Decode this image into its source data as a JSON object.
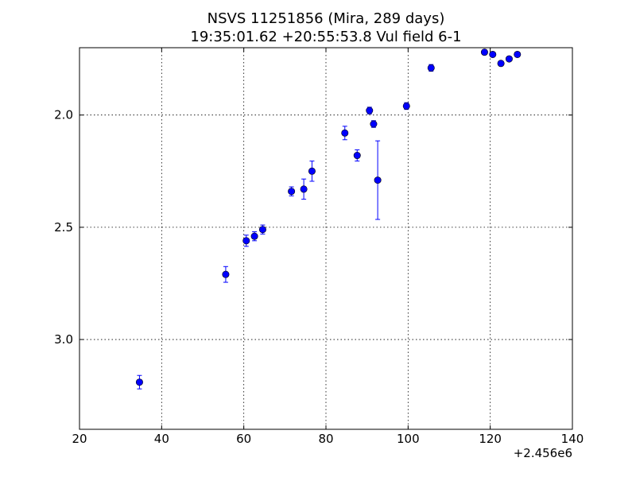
{
  "chart_data": {
    "type": "scatter",
    "title": "NSVS 11251856 (Mira, 289 days)",
    "subtitle": "19:35:01.62 +20:55:53.8 Vul field 6-1",
    "xlabel": "",
    "ylabel": "",
    "x_offset_label": "+2.456e6",
    "xlim": [
      20,
      140
    ],
    "ylim": [
      3.4,
      1.7
    ],
    "y_inverted": true,
    "grid": true,
    "x_ticks": [
      20,
      40,
      60,
      80,
      100,
      120,
      140
    ],
    "x_tick_labels": [
      "20",
      "40",
      "60",
      "80",
      "100",
      "120",
      "140"
    ],
    "y_ticks": [
      2.0,
      2.5,
      3.0
    ],
    "y_tick_labels": [
      "2.0",
      "2.5",
      "3.0"
    ],
    "marker_color": "#0000ff",
    "points": [
      {
        "x": 34.6,
        "y": 3.19,
        "err": 0.03
      },
      {
        "x": 55.6,
        "y": 2.71,
        "err": 0.035
      },
      {
        "x": 60.6,
        "y": 2.56,
        "err": 0.025
      },
      {
        "x": 62.6,
        "y": 2.54,
        "err": 0.02
      },
      {
        "x": 64.6,
        "y": 2.51,
        "err": 0.02
      },
      {
        "x": 71.6,
        "y": 2.34,
        "err": 0.02
      },
      {
        "x": 74.6,
        "y": 2.33,
        "err": 0.045
      },
      {
        "x": 76.6,
        "y": 2.25,
        "err": 0.045
      },
      {
        "x": 84.6,
        "y": 2.08,
        "err": 0.03
      },
      {
        "x": 87.6,
        "y": 2.18,
        "err": 0.025
      },
      {
        "x": 90.6,
        "y": 1.98,
        "err": 0.015
      },
      {
        "x": 91.6,
        "y": 2.04,
        "err": 0.015
      },
      {
        "x": 92.6,
        "y": 2.29,
        "err": 0.175
      },
      {
        "x": 99.6,
        "y": 1.96,
        "err": 0.015
      },
      {
        "x": 105.6,
        "y": 1.79,
        "err": 0.015
      },
      {
        "x": 118.6,
        "y": 1.72,
        "err": 0.01
      },
      {
        "x": 120.6,
        "y": 1.73,
        "err": 0.01
      },
      {
        "x": 122.6,
        "y": 1.77,
        "err": 0.01
      },
      {
        "x": 124.6,
        "y": 1.75,
        "err": 0.01
      },
      {
        "x": 126.6,
        "y": 1.73,
        "err": 0.01
      }
    ]
  }
}
